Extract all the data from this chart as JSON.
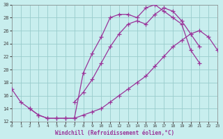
{
  "xlabel": "Windchill (Refroidissement éolien,°C)",
  "bg_color": "#c8eeee",
  "line_color": "#993399",
  "grid_color": "#99cccc",
  "xlim": [
    0,
    23
  ],
  "ylim": [
    12,
    30
  ],
  "xticks": [
    0,
    1,
    2,
    3,
    4,
    5,
    6,
    7,
    8,
    9,
    10,
    11,
    12,
    13,
    14,
    15,
    16,
    17,
    18,
    19,
    20,
    21,
    22,
    23
  ],
  "yticks": [
    12,
    14,
    16,
    18,
    20,
    22,
    24,
    26,
    28,
    30
  ],
  "curve1_x": [
    0,
    1,
    2,
    3,
    4,
    5,
    6,
    7,
    8,
    9,
    10,
    11,
    12,
    13,
    14,
    15,
    16,
    17,
    18,
    19,
    20,
    21
  ],
  "curve1_y": [
    17.0,
    15.0,
    14.0,
    13.0,
    12.5,
    12.5,
    12.5,
    12.5,
    19.5,
    22.5,
    25.0,
    28.0,
    28.5,
    28.5,
    28.0,
    29.5,
    30.0,
    29.0,
    28.0,
    27.0,
    23.0,
    21.0
  ],
  "curve2_x": [
    2,
    3,
    4,
    5,
    6,
    7,
    8,
    9,
    10,
    11,
    12,
    13,
    14,
    15,
    16,
    17,
    18,
    19,
    20,
    21,
    22,
    23
  ],
  "curve2_y": [
    14.0,
    13.0,
    12.5,
    12.5,
    12.5,
    12.5,
    13.0,
    13.5,
    14.0,
    15.0,
    16.0,
    17.0,
    18.0,
    19.0,
    20.5,
    22.0,
    23.5,
    24.5,
    25.5,
    26.0,
    25.0,
    23.0
  ],
  "curve3_x": [
    7,
    8,
    9,
    10,
    11,
    12,
    13,
    14,
    15,
    16,
    17,
    18,
    19,
    20,
    21
  ],
  "curve3_y": [
    15.0,
    16.5,
    18.5,
    21.0,
    23.5,
    25.5,
    27.0,
    27.5,
    27.0,
    28.5,
    29.5,
    29.0,
    27.5,
    25.5,
    23.5
  ]
}
